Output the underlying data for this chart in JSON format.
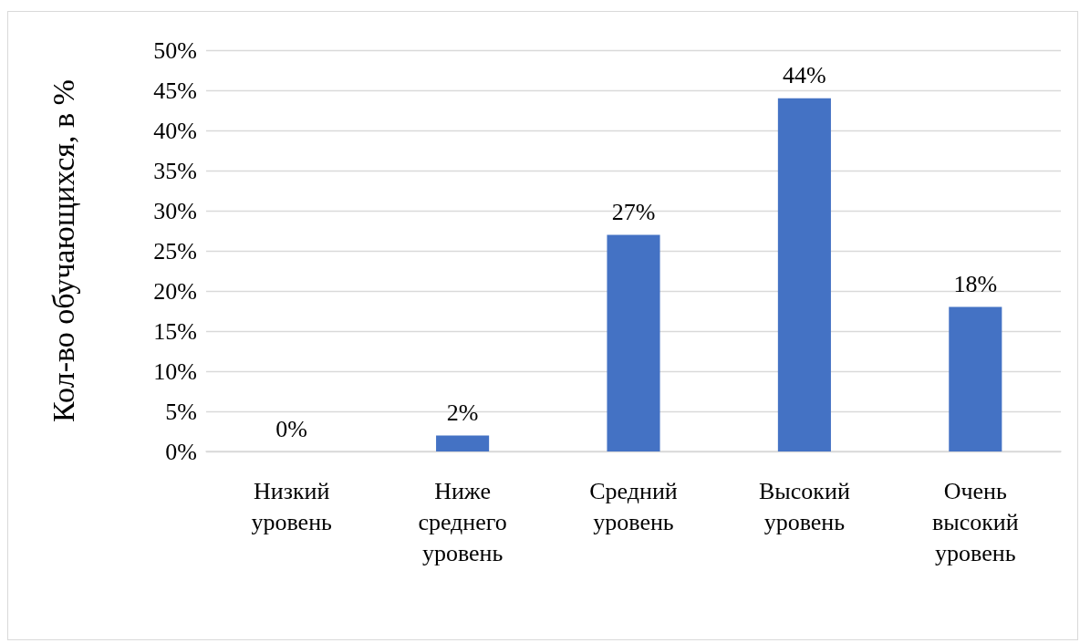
{
  "chart_data": {
    "type": "bar",
    "ylabel": "Кол-во обучающихся, в %",
    "categories": [
      "Низкий уровень",
      "Ниже среднего уровень",
      "Средний уровень",
      "Высокий уровень",
      "Очень высокий уровень"
    ],
    "values": [
      0,
      2,
      27,
      44,
      18
    ],
    "value_labels": [
      "0%",
      "2%",
      "27%",
      "44%",
      "18%"
    ],
    "color": "#4472c4",
    "ylim": [
      0,
      50
    ],
    "yticks": [
      {
        "value": 0,
        "label": "0%"
      },
      {
        "value": 5,
        "label": "5%"
      },
      {
        "value": 10,
        "label": "10%"
      },
      {
        "value": 15,
        "label": "15%"
      },
      {
        "value": 20,
        "label": "20%"
      },
      {
        "value": 25,
        "label": "25%"
      },
      {
        "value": 30,
        "label": "30%"
      },
      {
        "value": 35,
        "label": "35%"
      },
      {
        "value": 40,
        "label": "40%"
      },
      {
        "value": 45,
        "label": "45%"
      },
      {
        "value": 50,
        "label": "50%"
      }
    ],
    "grid": "y"
  }
}
